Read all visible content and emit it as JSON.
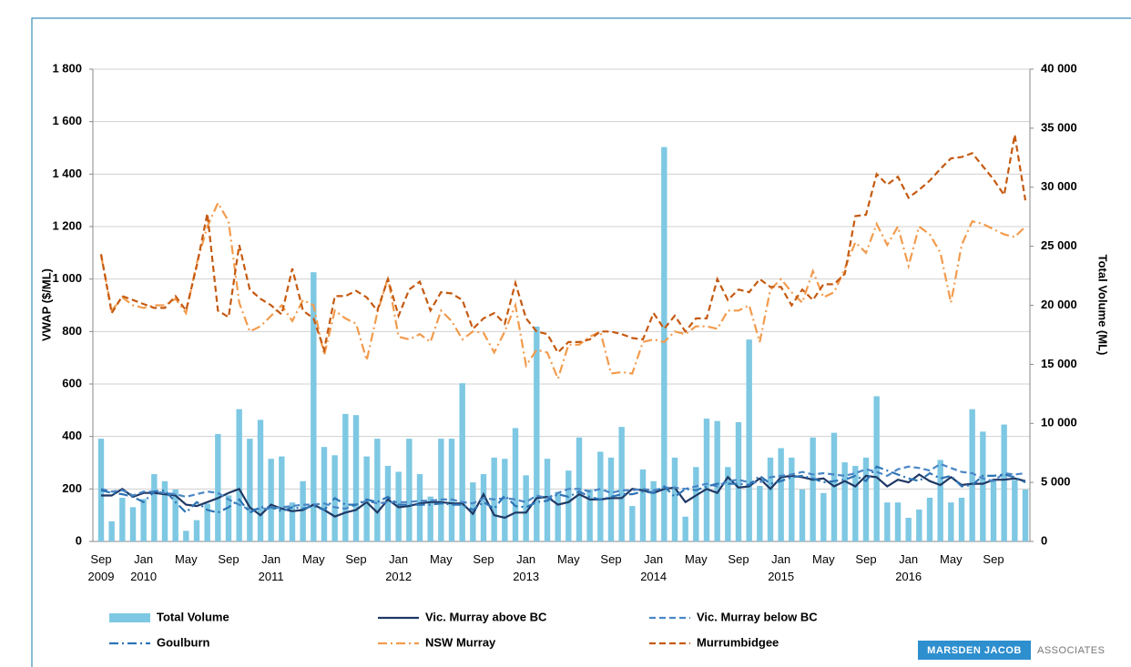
{
  "chart_data": {
    "type": "bar-line",
    "categories": [
      "Sep 2009",
      null,
      null,
      null,
      "Jan 2010",
      null,
      null,
      null,
      "May",
      null,
      null,
      null,
      "Sep",
      null,
      null,
      null,
      "Jan 2011",
      null,
      null,
      null,
      "May",
      null,
      null,
      null,
      "Sep",
      null,
      null,
      null,
      "Jan 2012",
      null,
      null,
      null,
      "May",
      null,
      null,
      null,
      "Sep",
      null,
      null,
      null,
      "Jan 2013",
      null,
      null,
      null,
      "May",
      null,
      null,
      null,
      "Sep",
      null,
      null,
      null,
      "Jan 2014",
      null,
      null,
      null,
      "May",
      null,
      null,
      null,
      "Sep",
      null,
      null,
      null,
      "Jan 2015",
      null,
      null,
      null,
      "May",
      null,
      null,
      null,
      "Sep",
      null,
      null,
      null,
      "Jan 2016",
      null,
      null,
      null,
      "May",
      null,
      null,
      null,
      "Sep",
      null,
      null,
      null
    ],
    "ylabel": "VWAP ($/ML)",
    "y2label": "Total Volume (ML)",
    "ylim": [
      0,
      1800
    ],
    "yticks": [
      0,
      200,
      400,
      600,
      800,
      {
        "value": 1000,
        "label": "1 000"
      },
      {
        "value": 1200,
        "label": "1 200"
      },
      {
        "value": 1400,
        "label": "1 400"
      },
      {
        "value": 1600,
        "label": "1 600"
      },
      {
        "value": 1800,
        "label": "1 800"
      }
    ],
    "y2lim": [
      0,
      40000
    ],
    "y2ticks": [
      0,
      {
        "value": 5000,
        "label": "5 000"
      },
      {
        "value": 10000,
        "label": "10 000"
      },
      {
        "value": 15000,
        "label": "15 000"
      },
      {
        "value": 20000,
        "label": "20 000"
      },
      {
        "value": 25000,
        "label": "25 000"
      },
      {
        "value": 30000,
        "label": "30 000"
      },
      {
        "value": 35000,
        "label": "35 000"
      },
      {
        "value": 40000,
        "label": "40 000"
      }
    ],
    "grid": true,
    "legend": "bottom",
    "series": [
      {
        "name": "Total Volume",
        "type": "bar",
        "axis": "y2",
        "color": "#7ec8e3",
        "values": [
          8700,
          1700,
          3700,
          2900,
          3600,
          5700,
          5100,
          4400,
          900,
          1800,
          3200,
          9100,
          3900,
          11200,
          8700,
          10300,
          7000,
          7200,
          3300,
          5100,
          22800,
          8000,
          7300,
          10800,
          10700,
          7200,
          8700,
          6400,
          5900,
          8700,
          5700,
          3800,
          8700,
          8700,
          13400,
          5000,
          5700,
          7100,
          7000,
          9600,
          5600,
          18200,
          7000,
          4200,
          6000,
          8800,
          4400,
          7600,
          7100,
          9700,
          3000,
          6100,
          5100,
          33400,
          7100,
          2100,
          6300,
          10400,
          10200,
          6300,
          10100,
          17100,
          4700,
          7100,
          7900,
          7100,
          4400,
          8800,
          4100,
          9200,
          6700,
          6400,
          7100,
          12300,
          3300,
          3300,
          2000,
          2700,
          3700,
          6900,
          3300,
          3700,
          11200,
          9300,
          5200,
          9900,
          5200,
          4400
        ]
      },
      {
        "name": "Vic. Murray above BC",
        "type": "line",
        "style": "solid",
        "color": "#1f3864",
        "values": [
          175,
          175,
          200,
          170,
          185,
          185,
          180,
          175,
          140,
          135,
          150,
          165,
          185,
          200,
          130,
          100,
          140,
          125,
          115,
          120,
          140,
          120,
          95,
          110,
          120,
          150,
          110,
          160,
          130,
          135,
          145,
          150,
          150,
          145,
          145,
          105,
          180,
          100,
          90,
          110,
          110,
          165,
          170,
          140,
          150,
          180,
          160,
          160,
          165,
          165,
          200,
          195,
          185,
          200,
          205,
          150,
          175,
          200,
          185,
          245,
          205,
          210,
          240,
          200,
          245,
          250,
          245,
          235,
          240,
          210,
          230,
          210,
          250,
          245,
          210,
          235,
          225,
          255,
          230,
          215,
          245,
          215,
          220,
          220,
          235,
          235,
          240,
          230
        ]
      },
      {
        "name": "Vic. Murray below BC",
        "type": "line",
        "style": "dashed",
        "color": "#4a86c5",
        "values": [
          200,
          190,
          195,
          175,
          190,
          190,
          185,
          180,
          170,
          180,
          190,
          185,
          160,
          140,
          120,
          125,
          125,
          130,
          135,
          140,
          140,
          145,
          130,
          125,
          140,
          155,
          145,
          150,
          150,
          150,
          155,
          155,
          160,
          160,
          150,
          145,
          165,
          160,
          165,
          160,
          150,
          175,
          165,
          185,
          200,
          200,
          190,
          200,
          185,
          195,
          195,
          200,
          195,
          205,
          205,
          200,
          210,
          220,
          210,
          230,
          235,
          225,
          225,
          245,
          250,
          255,
          265,
          255,
          260,
          255,
          250,
          260,
          275,
          265,
          250,
          275,
          285,
          280,
          270,
          295,
          280,
          265,
          260,
          240,
          230,
          260,
          255,
          260
        ]
      },
      {
        "name": "Goulburn",
        "type": "line",
        "style": "dashdot",
        "color": "#2e74b5",
        "values": [
          195,
          185,
          180,
          170,
          150,
          190,
          195,
          150,
          110,
          150,
          120,
          110,
          130,
          160,
          110,
          130,
          130,
          115,
          130,
          125,
          135,
          120,
          165,
          140,
          140,
          160,
          150,
          170,
          140,
          140,
          140,
          140,
          145,
          140,
          140,
          120,
          150,
          125,
          175,
          135,
          130,
          150,
          155,
          180,
          170,
          190,
          170,
          160,
          170,
          180,
          180,
          190,
          185,
          210,
          170,
          200,
          195,
          210,
          220,
          220,
          220,
          215,
          250,
          220,
          230,
          245,
          250,
          240,
          225,
          230,
          235,
          250,
          230,
          285,
          270,
          255,
          240,
          230,
          260,
          240,
          250,
          210,
          215,
          250,
          250,
          255,
          245,
          225
        ]
      },
      {
        "name": "NSW Murray",
        "type": "line",
        "style": "dashdot",
        "color": "#f29b4d",
        "values": [
          1090,
          880,
          930,
          900,
          890,
          900,
          900,
          925,
          870,
          1060,
          1200,
          1290,
          1220,
          910,
          800,
          820,
          860,
          900,
          840,
          920,
          900,
          710,
          880,
          850,
          830,
          690,
          870,
          1005,
          780,
          770,
          790,
          760,
          880,
          840,
          770,
          800,
          795,
          720,
          800,
          900,
          670,
          730,
          720,
          620,
          750,
          750,
          780,
          800,
          640,
          645,
          640,
          760,
          770,
          760,
          800,
          790,
          820,
          820,
          810,
          880,
          880,
          900,
          760,
          960,
          1000,
          950,
          910,
          1030,
          930,
          950,
          1040,
          1140,
          1100,
          1210,
          1130,
          1200,
          1050,
          1200,
          1170,
          1100,
          910,
          1130,
          1220,
          1210,
          1190,
          1170,
          1160,
          1200
        ]
      },
      {
        "name": "Murrumbidgee",
        "type": "line",
        "style": "dashed",
        "color": "#c55a11",
        "values": [
          1095,
          870,
          935,
          920,
          905,
          890,
          890,
          935,
          880,
          1050,
          1250,
          880,
          855,
          1130,
          960,
          925,
          900,
          865,
          1040,
          880,
          850,
          730,
          935,
          935,
          955,
          930,
          880,
          1000,
          860,
          960,
          990,
          880,
          950,
          945,
          920,
          810,
          850,
          870,
          830,
          985,
          850,
          800,
          790,
          720,
          760,
          760,
          770,
          800,
          800,
          790,
          775,
          770,
          870,
          810,
          860,
          800,
          850,
          850,
          1000,
          920,
          960,
          950,
          1000,
          970,
          970,
          900,
          960,
          920,
          980,
          980,
          1020,
          1240,
          1245,
          1400,
          1360,
          1390,
          1310,
          1340,
          1375,
          1420,
          1460,
          1465,
          1480,
          1430,
          1380,
          1320,
          1550,
          1300
        ]
      }
    ]
  },
  "logo": {
    "name": "MARSDEN JACOB",
    "suffix": "ASSOCIATES"
  }
}
